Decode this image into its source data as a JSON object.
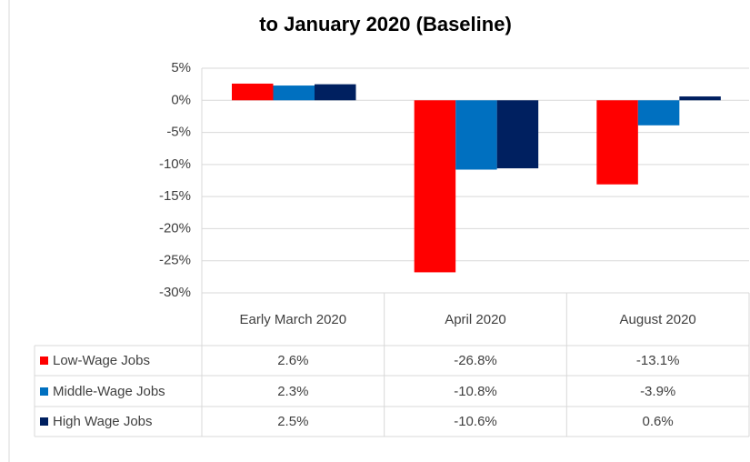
{
  "chart_data": {
    "type": "bar",
    "title": "to January 2020 (Baseline)",
    "categories": [
      "Early March 2020",
      "April 2020",
      "August 2020"
    ],
    "series": [
      {
        "name": "Low-Wage Jobs",
        "color": "#ff0000",
        "values": [
          2.6,
          -26.8,
          -13.1
        ],
        "value_labels": [
          "2.6%",
          "-26.8%",
          "-13.1%"
        ]
      },
      {
        "name": "Middle-Wage Jobs",
        "color": "#0070c0",
        "values": [
          2.3,
          -10.8,
          -3.9
        ],
        "value_labels": [
          "2.3%",
          "-10.8%",
          "-3.9%"
        ]
      },
      {
        "name": "High Wage Jobs",
        "color": "#002060",
        "values": [
          2.5,
          -10.6,
          0.6
        ],
        "value_labels": [
          "2.5%",
          "-10.6%",
          "0.6%"
        ]
      }
    ],
    "ylim": [
      -30,
      5
    ],
    "yticks": [
      {
        "value": 5,
        "label": "5%"
      },
      {
        "value": 0,
        "label": "0%"
      },
      {
        "value": -5,
        "label": "-5%"
      },
      {
        "value": -10,
        "label": "-10%"
      },
      {
        "value": -15,
        "label": "-15%"
      },
      {
        "value": -20,
        "label": "-20%"
      },
      {
        "value": -25,
        "label": "-25%"
      },
      {
        "value": -30,
        "label": "-30%"
      }
    ],
    "grid": true
  }
}
